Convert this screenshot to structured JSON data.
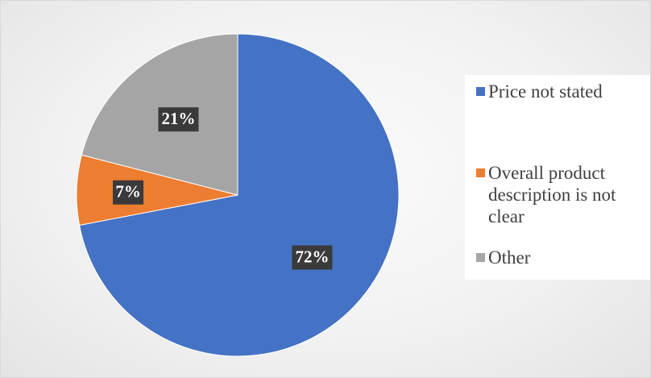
{
  "chart_data": {
    "type": "pie",
    "title": "",
    "slices": [
      {
        "label": "Price not stated",
        "value": 72,
        "display": "72%",
        "color": "#4472C4"
      },
      {
        "label": "Overall product description is not clear",
        "value": 7,
        "display": "7%",
        "color": "#ED7D31"
      },
      {
        "label": "Other",
        "value": 21,
        "display": "21%",
        "color": "#A5A5A5"
      }
    ],
    "start_angle_deg": 0,
    "direction": "clockwise",
    "data_labels": "inside",
    "legend_position": "right"
  },
  "legend": {
    "items": [
      {
        "label": "Price not stated",
        "color": "#4472C4"
      },
      {
        "label": "Overall product description is not clear",
        "color": "#ED7D31"
      },
      {
        "label": "Other",
        "color": "#A5A5A5"
      }
    ]
  }
}
